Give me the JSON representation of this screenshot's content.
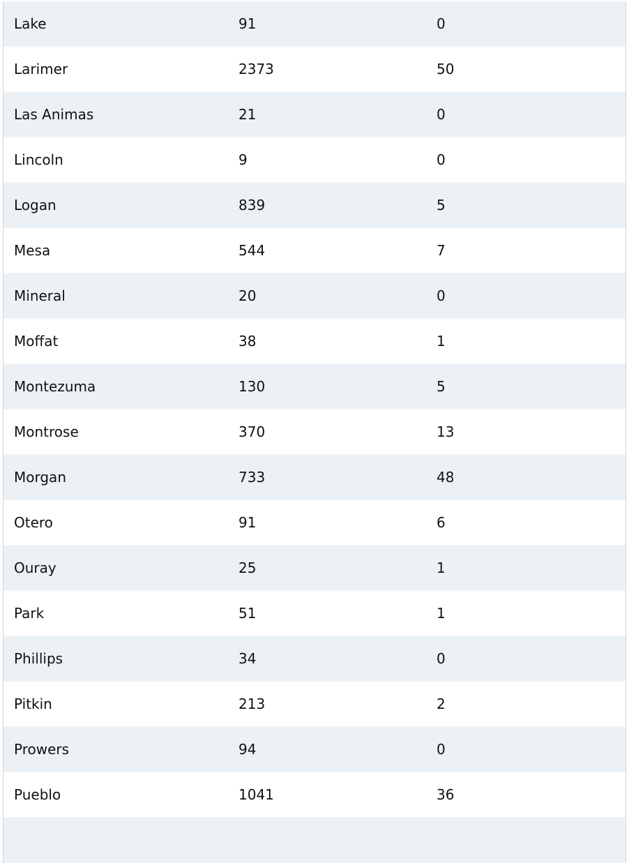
{
  "table": {
    "rows": [
      [
        "Lake",
        "91",
        "0"
      ],
      [
        "Larimer",
        "2373",
        "50"
      ],
      [
        "Las Animas",
        "21",
        "0"
      ],
      [
        "Lincoln",
        "9",
        "0"
      ],
      [
        "Logan",
        "839",
        "5"
      ],
      [
        "Mesa",
        "544",
        "7"
      ],
      [
        "Mineral",
        "20",
        "0"
      ],
      [
        "Moffat",
        "38",
        "1"
      ],
      [
        "Montezuma",
        "130",
        "5"
      ],
      [
        "Montrose",
        "370",
        "13"
      ],
      [
        "Morgan",
        "733",
        "48"
      ],
      [
        "Otero",
        "91",
        "6"
      ],
      [
        "Ouray",
        "25",
        "1"
      ],
      [
        "Park",
        "51",
        "1"
      ],
      [
        "Phillips",
        "34",
        "0"
      ],
      [
        "Pitkin",
        "213",
        "2"
      ],
      [
        "Prowers",
        "94",
        "0"
      ],
      [
        "Pueblo",
        "1041",
        "36"
      ],
      [
        "",
        "",
        ""
      ]
    ]
  },
  "colors": {
    "stripe": "#ecf1f5",
    "border": "#d4d4d4"
  }
}
